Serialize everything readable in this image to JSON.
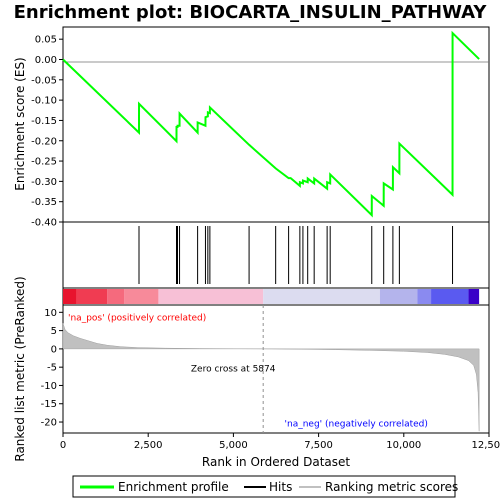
{
  "chart_data": {
    "type": "line",
    "title": "Enrichment plot: BIOCARTA_INSULIN_PATHWAY",
    "colors": {
      "es_line": "#00ff00",
      "hits": "#000000",
      "metric_fill": "#c0c0c0",
      "zero_line": "#909090",
      "pos_label": "#ff0000",
      "neg_label": "#0000ff"
    },
    "es_panel": {
      "ylabel": "Enrichment score (ES)",
      "ylim": [
        -0.4,
        0.08
      ],
      "yticks": [
        0.05,
        0.0,
        -0.05,
        -0.1,
        -0.15,
        -0.2,
        -0.25,
        -0.3,
        -0.35,
        -0.4
      ],
      "ytick_labels": [
        "0.05",
        "0.00",
        "-0.05",
        "-0.10",
        "-0.15",
        "-0.20",
        "-0.25",
        "-0.30",
        "-0.35",
        "-0.40"
      ],
      "es_points": [
        [
          0,
          0.0
        ],
        [
          2230,
          -0.18
        ],
        [
          2231,
          -0.109
        ],
        [
          3330,
          -0.201
        ],
        [
          3331,
          -0.166
        ],
        [
          3360,
          -0.166
        ],
        [
          3361,
          -0.163
        ],
        [
          3420,
          -0.163
        ],
        [
          3421,
          -0.133
        ],
        [
          3950,
          -0.18
        ],
        [
          3951,
          -0.155
        ],
        [
          4180,
          -0.163
        ],
        [
          4181,
          -0.142
        ],
        [
          4250,
          -0.14
        ],
        [
          4251,
          -0.13
        ],
        [
          4310,
          -0.132
        ],
        [
          4311,
          -0.118
        ],
        [
          5460,
          -0.21
        ],
        [
          6240,
          -0.268
        ],
        [
          6620,
          -0.292
        ],
        [
          6680,
          -0.292
        ],
        [
          6950,
          -0.311
        ],
        [
          6951,
          -0.302
        ],
        [
          7040,
          -0.305
        ],
        [
          7041,
          -0.298
        ],
        [
          7180,
          -0.302
        ],
        [
          7181,
          -0.293
        ],
        [
          7370,
          -0.305
        ],
        [
          7371,
          -0.293
        ],
        [
          7750,
          -0.318
        ],
        [
          7751,
          -0.302
        ],
        [
          7840,
          -0.305
        ],
        [
          7841,
          -0.283
        ],
        [
          9060,
          -0.383
        ],
        [
          9061,
          -0.336
        ],
        [
          9410,
          -0.36
        ],
        [
          9411,
          -0.305
        ],
        [
          9680,
          -0.32
        ],
        [
          9681,
          -0.265
        ],
        [
          9870,
          -0.28
        ],
        [
          9871,
          -0.207
        ],
        [
          11430,
          -0.333
        ],
        [
          11431,
          0.065
        ],
        [
          12210,
          0.001
        ]
      ]
    },
    "hits": [
      2230,
      3330,
      3360,
      3420,
      3950,
      4180,
      4250,
      4310,
      5460,
      6240,
      6620,
      6950,
      7040,
      7180,
      7370,
      7750,
      7840,
      9060,
      9410,
      9680,
      9870,
      11430
    ],
    "metric_panel": {
      "ylabel": "Ranked list metric (PreRanked)",
      "xlabel": "Rank in Ordered Dataset",
      "ylim": [
        -23,
        12
      ],
      "yticks": [
        10,
        5,
        0,
        -5,
        -10,
        -15,
        -20
      ],
      "ytick_labels": [
        "10",
        "5",
        "0",
        "-5",
        "-10",
        "-15",
        "-20"
      ],
      "xlim": [
        0,
        12500
      ],
      "xticks": [
        0,
        2500,
        5000,
        7500,
        10000,
        12500
      ],
      "xtick_labels": [
        "0",
        "2,500",
        "5,000",
        "7,500",
        "10,000",
        "12,500"
      ],
      "zero_cross": 5874,
      "zero_cross_label": "Zero cross at 5874",
      "pos_label": "'na_pos' (positively correlated)",
      "neg_label": "'na_neg' (negatively correlated)",
      "metric_points": [
        [
          0,
          7.0
        ],
        [
          60,
          5.3
        ],
        [
          150,
          4.4
        ],
        [
          300,
          3.6
        ],
        [
          500,
          2.9
        ],
        [
          750,
          2.2
        ],
        [
          1000,
          1.5
        ],
        [
          1300,
          1.0
        ],
        [
          1700,
          0.6
        ],
        [
          2200,
          0.35
        ],
        [
          3000,
          0.2
        ],
        [
          4000,
          0.1
        ],
        [
          5000,
          0.04
        ],
        [
          5874,
          0.0
        ],
        [
          7000,
          -0.1
        ],
        [
          8000,
          -0.22
        ],
        [
          9000,
          -0.4
        ],
        [
          10000,
          -0.65
        ],
        [
          10700,
          -1.0
        ],
        [
          11200,
          -1.5
        ],
        [
          11600,
          -2.2
        ],
        [
          11900,
          -3.2
        ],
        [
          12050,
          -4.5
        ],
        [
          12130,
          -7.0
        ],
        [
          12180,
          -12.0
        ],
        [
          12210,
          -22.5
        ]
      ]
    },
    "legend": [
      {
        "label": "Enrichment profile",
        "color": "#00ff00"
      },
      {
        "label": "Hits",
        "color": "#000000"
      },
      {
        "label": "Ranking metric scores",
        "color": "#c0c0c0"
      }
    ]
  }
}
